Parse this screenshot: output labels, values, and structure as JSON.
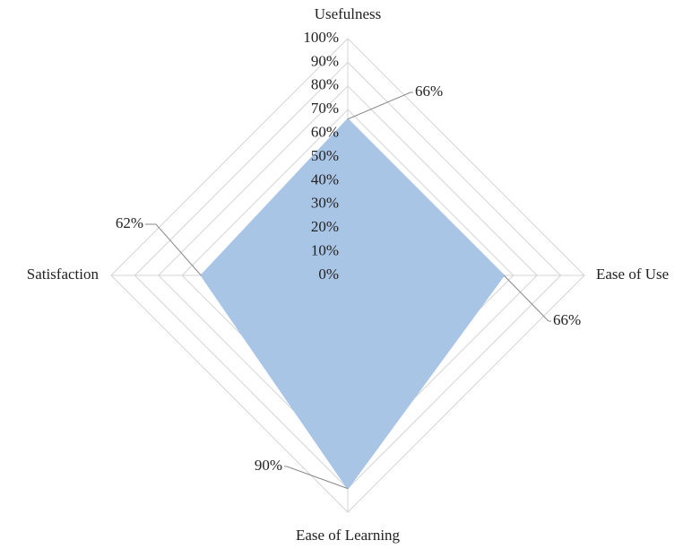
{
  "chart_data": {
    "type": "radar",
    "categories": [
      "Usefulness",
      "Ease of Use",
      "Ease of Learning",
      "Satisfaction"
    ],
    "values": [
      66,
      66,
      90,
      62
    ],
    "value_labels": [
      "66%",
      "66%",
      "90%",
      "62%"
    ],
    "color": "#a9c5e6",
    "ylim": [
      0,
      100
    ],
    "yticks": [
      {
        "value": 0,
        "label": "0%"
      },
      {
        "value": 10,
        "label": "10%"
      },
      {
        "value": 20,
        "label": "20%"
      },
      {
        "value": 30,
        "label": "30%"
      },
      {
        "value": 40,
        "label": "40%"
      },
      {
        "value": 50,
        "label": "50%"
      },
      {
        "value": 60,
        "label": "60%"
      },
      {
        "value": 70,
        "label": "70%"
      },
      {
        "value": 80,
        "label": "80%"
      },
      {
        "value": 90,
        "label": "90%"
      },
      {
        "value": 100,
        "label": "100%"
      }
    ],
    "grid": true
  }
}
